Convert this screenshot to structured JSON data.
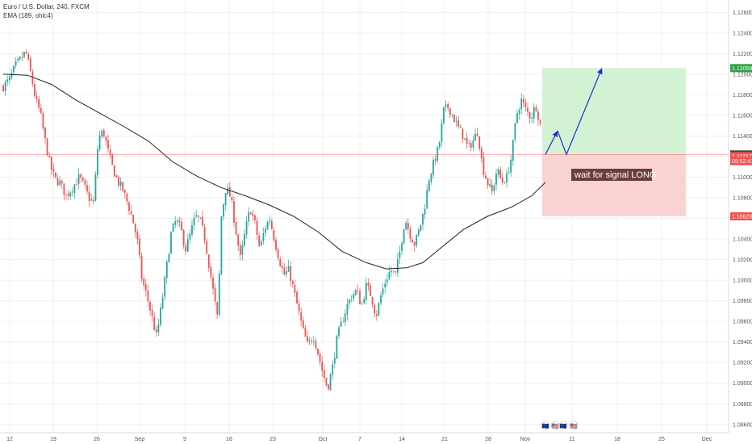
{
  "header": {
    "symbol": "Euro / U.S. Dollar, 240, FXCM",
    "indicator": "EMA (189, ohlc4)"
  },
  "chart_data": {
    "type": "candlestick",
    "y_ticks": [
      "1.12600",
      "1.12400",
      "1.12200",
      "1.12000",
      "1.11800",
      "1.11600",
      "1.11400",
      "1.11200",
      "1.11000",
      "1.10800",
      "1.10600",
      "1.10400",
      "1.10200",
      "1.10000",
      "1.09800",
      "1.09600",
      "1.09400",
      "1.09200",
      "1.09000",
      "1.08800",
      "1.08600"
    ],
    "ylim": [
      1.0852,
      1.1272
    ],
    "x_ticks": [
      "12",
      "19",
      "26",
      "Sep",
      "9",
      "16",
      "23",
      "Oct",
      "7",
      "14",
      "21",
      "28",
      "Nov",
      "11",
      "18",
      "25",
      "Dec"
    ],
    "grid": true,
    "current_price": "1.11221",
    "price_tags": [
      {
        "label": "1.12059",
        "value": 1.12059,
        "color": "#2ea043"
      },
      {
        "label": "1.11221",
        "value": 1.11221,
        "color": "#444444"
      },
      {
        "label": "1.11217",
        "value": 1.11205,
        "color": "#ef5350"
      },
      {
        "label": "05:52:41",
        "value": 1.11155,
        "color": "#ef5350"
      },
      {
        "label": "1.10620",
        "value": 1.1062,
        "color": "#ef5350"
      }
    ],
    "close_path": [
      [
        0,
        1.1188
      ],
      [
        8,
        1.1195
      ],
      [
        15,
        1.1208
      ],
      [
        22,
        1.1215
      ],
      [
        28,
        1.1222
      ],
      [
        34,
        1.1201
      ],
      [
        40,
        1.1176
      ],
      [
        46,
        1.1162
      ],
      [
        52,
        1.1135
      ],
      [
        58,
        1.1112
      ],
      [
        64,
        1.1098
      ],
      [
        70,
        1.1095
      ],
      [
        78,
        1.1082
      ],
      [
        86,
        1.109
      ],
      [
        94,
        1.11
      ],
      [
        100,
        1.1092
      ],
      [
        106,
        1.108
      ],
      [
        112,
        1.1075
      ],
      [
        118,
        1.1138
      ],
      [
        124,
        1.1145
      ],
      [
        130,
        1.1125
      ],
      [
        136,
        1.1108
      ],
      [
        142,
        1.1096
      ],
      [
        148,
        1.1088
      ],
      [
        154,
        1.1075
      ],
      [
        160,
        1.106
      ],
      [
        166,
        1.104
      ],
      [
        172,
        1.1
      ],
      [
        178,
        1.0985
      ],
      [
        184,
        1.0965
      ],
      [
        190,
        1.0945
      ],
      [
        196,
        1.0975
      ],
      [
        202,
        1.101
      ],
      [
        208,
        1.1045
      ],
      [
        214,
        1.1058
      ],
      [
        220,
        1.105
      ],
      [
        226,
        1.103
      ],
      [
        232,
        1.1045
      ],
      [
        238,
        1.1062
      ],
      [
        244,
        1.1058
      ],
      [
        250,
        1.104
      ],
      [
        256,
        1.101
      ],
      [
        262,
        1.098
      ],
      [
        266,
        1.096
      ],
      [
        270,
        1.106
      ],
      [
        276,
        1.109
      ],
      [
        282,
        1.108
      ],
      [
        288,
        1.105
      ],
      [
        294,
        1.102
      ],
      [
        300,
        1.1048
      ],
      [
        306,
        1.107
      ],
      [
        312,
        1.1055
      ],
      [
        318,
        1.103
      ],
      [
        324,
        1.105
      ],
      [
        330,
        1.106
      ],
      [
        336,
        1.104
      ],
      [
        342,
        1.102
      ],
      [
        348,
        1.1005
      ],
      [
        354,
        1.101
      ],
      [
        360,
        1.099
      ],
      [
        366,
        1.097
      ],
      [
        372,
        1.095
      ],
      [
        378,
        1.0935
      ],
      [
        384,
        1.0948
      ],
      [
        390,
        1.093
      ],
      [
        396,
        1.091
      ],
      [
        402,
        1.0895
      ],
      [
        408,
        1.0915
      ],
      [
        414,
        1.0945
      ],
      [
        420,
        1.096
      ],
      [
        426,
        1.0975
      ],
      [
        432,
        1.0985
      ],
      [
        438,
        1.099
      ],
      [
        444,
        1.0975
      ],
      [
        450,
        1.0995
      ],
      [
        456,
        1.0985
      ],
      [
        462,
        1.0965
      ],
      [
        468,
        1.0985
      ],
      [
        474,
        1.1
      ],
      [
        480,
        1.101
      ],
      [
        486,
        1.1005
      ],
      [
        492,
        1.103
      ],
      [
        498,
        1.106
      ],
      [
        504,
        1.1045
      ],
      [
        510,
        1.1035
      ],
      [
        516,
        1.105
      ],
      [
        522,
        1.107
      ],
      [
        528,
        1.11
      ],
      [
        534,
        1.1115
      ],
      [
        540,
        1.113
      ],
      [
        546,
        1.1165
      ],
      [
        552,
        1.1168
      ],
      [
        558,
        1.1158
      ],
      [
        564,
        1.1148
      ],
      [
        570,
        1.114
      ],
      [
        576,
        1.1128
      ],
      [
        582,
        1.1135
      ],
      [
        588,
        1.1145
      ],
      [
        594,
        1.111
      ],
      [
        600,
        1.1095
      ],
      [
        606,
        1.1085
      ],
      [
        612,
        1.1108
      ],
      [
        618,
        1.1095
      ],
      [
        624,
        1.11
      ],
      [
        630,
        1.112
      ],
      [
        636,
        1.116
      ],
      [
        642,
        1.1175
      ],
      [
        648,
        1.1165
      ],
      [
        654,
        1.1158
      ],
      [
        660,
        1.117
      ],
      [
        666,
        1.115
      ],
      [
        672,
        1.1122
      ]
    ],
    "ema": [
      [
        0,
        1.12
      ],
      [
        30,
        1.1199
      ],
      [
        60,
        1.119
      ],
      [
        90,
        1.1175
      ],
      [
        120,
        1.1162
      ],
      [
        150,
        1.1149
      ],
      [
        180,
        1.1135
      ],
      [
        210,
        1.1115
      ],
      [
        240,
        1.1101
      ],
      [
        270,
        1.109
      ],
      [
        300,
        1.1082
      ],
      [
        330,
        1.1073
      ],
      [
        360,
        1.1062
      ],
      [
        390,
        1.1047
      ],
      [
        420,
        1.1028
      ],
      [
        450,
        1.1017
      ],
      [
        475,
        1.1011
      ],
      [
        500,
        1.1012
      ],
      [
        520,
        1.1017
      ],
      [
        545,
        1.1033
      ],
      [
        570,
        1.1049
      ],
      [
        600,
        1.1062
      ],
      [
        630,
        1.1071
      ],
      [
        655,
        1.1082
      ],
      [
        672,
        1.1095
      ]
    ],
    "position": {
      "type": "long",
      "entry": 1.11221,
      "target": 1.12059,
      "stop": 1.1062,
      "note": "wait for signal LONG"
    },
    "projection": [
      [
        672,
        1.11221
      ],
      [
        687,
        1.1145
      ],
      [
        698,
        1.11221
      ],
      [
        742,
        1.12059
      ]
    ]
  },
  "colors": {
    "up": "#26a69a",
    "down": "#ef5350",
    "ema": "#222222",
    "profit_zone": "#d3f2d3",
    "loss_zone": "#fbd2d2",
    "arrow": "#1a2fd6",
    "grid": "#eef0f3"
  },
  "footer": {
    "event_icons": [
      "🇪🇺",
      "🇺🇸",
      "🇪🇺",
      "🇺🇸"
    ]
  }
}
